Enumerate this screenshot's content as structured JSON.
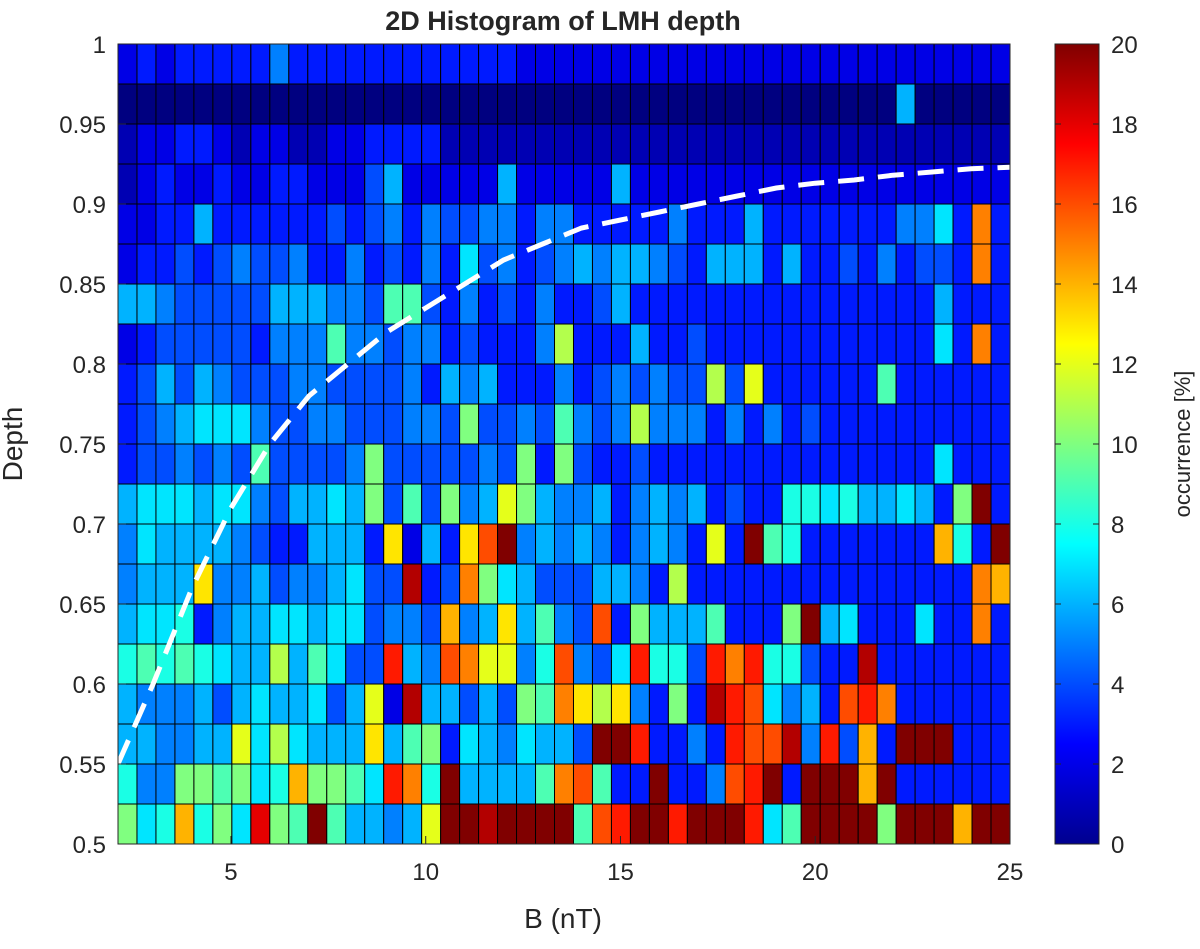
{
  "chart_data": {
    "type": "heatmap",
    "title": "2D Histogram of LMH depth",
    "xlabel": "B (nT)",
    "ylabel": "Depth",
    "colorbar_label": "occurrence [%]",
    "xlim": [
      2.1,
      25
    ],
    "ylim": [
      0.5,
      1
    ],
    "x_ticks": [
      5,
      10,
      15,
      20,
      25
    ],
    "y_ticks": [
      0.5,
      0.55,
      0.6,
      0.65,
      0.7,
      0.75,
      0.8,
      0.85,
      0.9,
      0.95,
      1
    ],
    "colorbar_ticks": [
      0,
      2,
      4,
      6,
      8,
      10,
      12,
      14,
      16,
      18,
      20
    ],
    "clim": [
      0,
      20
    ],
    "colormap": "jet",
    "n_x_bins": 47,
    "n_y_bins": 20,
    "grid": true,
    "legend": "colorbar-right",
    "dashed_curve": {
      "color": "#ffffff",
      "points": [
        [
          2.1,
          0.55
        ],
        [
          3.0,
          0.6
        ],
        [
          4.0,
          0.66
        ],
        [
          5.0,
          0.71
        ],
        [
          6.0,
          0.75
        ],
        [
          7.0,
          0.78
        ],
        [
          8.0,
          0.8
        ],
        [
          9.0,
          0.82
        ],
        [
          10.0,
          0.835
        ],
        [
          11.0,
          0.85
        ],
        [
          12.0,
          0.865
        ],
        [
          13.0,
          0.875
        ],
        [
          14.0,
          0.885
        ],
        [
          15.0,
          0.89
        ],
        [
          16.0,
          0.895
        ],
        [
          17.0,
          0.9
        ],
        [
          18.0,
          0.905
        ],
        [
          19.0,
          0.91
        ],
        [
          20.0,
          0.913
        ],
        [
          21.0,
          0.915
        ],
        [
          22.0,
          0.918
        ],
        [
          23.0,
          0.92
        ],
        [
          24.0,
          0.922
        ],
        [
          25.0,
          0.923
        ]
      ]
    },
    "cells": [
      [
        2,
        3,
        2,
        3,
        3,
        3,
        3,
        3,
        5,
        3,
        3,
        3,
        3,
        3,
        3,
        3,
        3,
        3,
        3,
        3,
        3,
        2,
        2,
        2,
        2,
        2,
        2,
        2,
        2,
        2,
        2,
        2,
        2,
        2,
        2,
        2,
        2,
        2,
        2,
        2,
        2,
        2,
        2,
        2,
        2,
        2,
        2
      ],
      [
        0,
        0,
        0,
        0,
        0,
        0,
        0,
        0,
        0,
        0,
        0,
        0,
        0,
        0,
        0,
        0,
        0,
        0,
        0,
        0,
        0,
        0,
        0,
        0,
        0,
        0,
        0,
        0,
        0,
        0,
        0,
        0,
        0,
        0,
        0,
        0,
        0,
        0,
        0,
        0,
        0,
        6,
        0,
        0,
        0,
        0,
        0
      ],
      [
        1,
        2,
        2,
        3,
        3,
        2,
        1,
        2,
        2,
        1,
        1,
        2,
        2,
        3,
        3,
        3,
        3,
        1,
        1,
        1,
        1,
        1,
        1,
        1,
        1,
        1,
        1,
        1,
        1,
        1,
        1,
        1,
        1,
        1,
        1,
        1,
        1,
        1,
        1,
        1,
        1,
        1,
        1,
        1,
        1,
        1,
        1
      ],
      [
        1,
        2,
        3,
        2,
        2,
        3,
        2,
        2,
        3,
        3,
        2,
        2,
        2,
        4,
        6,
        2,
        2,
        2,
        2,
        2,
        6,
        2,
        2,
        2,
        2,
        2,
        6,
        2,
        2,
        2,
        2,
        2,
        2,
        2,
        2,
        2,
        2,
        2,
        2,
        2,
        2,
        2,
        2,
        2,
        2,
        2,
        2
      ],
      [
        2,
        2,
        3,
        3,
        6,
        3,
        3,
        3,
        3,
        3,
        3,
        4,
        3,
        4,
        5,
        3,
        5,
        4,
        4,
        5,
        5,
        3,
        5,
        5,
        3,
        3,
        3,
        3,
        3,
        5,
        3,
        3,
        3,
        6,
        3,
        3,
        3,
        3,
        3,
        3,
        3,
        5,
        5,
        7,
        3,
        15,
        3
      ],
      [
        2,
        3,
        3,
        4,
        3,
        4,
        5,
        4,
        4,
        5,
        3,
        3,
        5,
        3,
        4,
        3,
        5,
        3,
        7,
        4,
        5,
        3,
        4,
        5,
        6,
        5,
        6,
        6,
        5,
        4,
        3,
        6,
        6,
        6,
        3,
        6,
        3,
        3,
        4,
        3,
        5,
        3,
        4,
        4,
        3,
        15,
        3
      ],
      [
        6,
        6,
        5,
        4,
        4,
        4,
        4,
        4,
        6,
        6,
        6,
        5,
        5,
        4,
        9,
        9,
        4,
        3,
        5,
        3,
        4,
        3,
        5,
        3,
        3,
        4,
        6,
        3,
        3,
        3,
        3,
        3,
        3,
        3,
        3,
        3,
        3,
        3,
        3,
        3,
        3,
        3,
        3,
        6,
        3,
        3,
        3
      ],
      [
        2,
        3,
        4,
        4,
        4,
        4,
        4,
        3,
        5,
        5,
        5,
        9,
        5,
        5,
        4,
        5,
        5,
        3,
        4,
        3,
        3,
        3,
        5,
        11,
        3,
        3,
        3,
        6,
        3,
        3,
        4,
        3,
        3,
        3,
        3,
        3,
        3,
        3,
        3,
        3,
        3,
        3,
        3,
        7,
        3,
        15,
        3
      ],
      [
        3,
        4,
        6,
        4,
        6,
        5,
        4,
        4,
        4,
        5,
        5,
        4,
        4,
        4,
        4,
        5,
        3,
        6,
        5,
        6,
        3,
        3,
        3,
        5,
        3,
        4,
        5,
        4,
        5,
        4,
        4,
        11,
        4,
        12,
        3,
        3,
        3,
        3,
        3,
        3,
        9,
        3,
        3,
        3,
        3,
        3,
        3
      ],
      [
        3,
        4,
        5,
        6,
        7,
        7,
        7,
        5,
        4,
        4,
        5,
        5,
        4,
        4,
        4,
        5,
        5,
        4,
        10,
        4,
        4,
        5,
        4,
        9,
        5,
        4,
        5,
        11,
        5,
        5,
        5,
        3,
        5,
        3,
        5,
        3,
        4,
        3,
        3,
        3,
        3,
        3,
        3,
        3,
        3,
        3,
        3
      ],
      [
        3,
        4,
        4,
        5,
        4,
        5,
        4,
        9,
        4,
        4,
        4,
        4,
        5,
        10,
        4,
        4,
        4,
        4,
        4,
        5,
        4,
        10,
        3,
        10,
        4,
        3,
        3,
        4,
        3,
        3,
        3,
        3,
        3,
        3,
        3,
        3,
        3,
        3,
        3,
        3,
        3,
        3,
        3,
        7,
        3,
        3,
        3
      ],
      [
        6,
        7,
        7,
        7,
        6,
        7,
        7,
        5,
        4,
        6,
        6,
        7,
        6,
        10,
        4,
        9,
        4,
        10,
        5,
        6,
        12,
        10,
        6,
        5,
        5,
        6,
        3,
        5,
        6,
        5,
        6,
        3,
        4,
        3,
        3,
        8,
        8,
        7,
        8,
        6,
        6,
        7,
        6,
        3,
        10,
        20,
        3
      ],
      [
        5,
        7,
        6,
        6,
        6,
        6,
        5,
        4,
        3,
        3,
        6,
        6,
        6,
        3,
        13,
        2,
        6,
        3,
        13,
        16,
        20,
        5,
        6,
        5,
        6,
        5,
        3,
        5,
        6,
        5,
        3,
        12,
        3,
        20,
        9,
        8,
        3,
        3,
        3,
        3,
        3,
        3,
        3,
        14,
        8,
        3,
        20
      ],
      [
        5,
        6,
        6,
        6,
        13,
        5,
        5,
        6,
        4,
        5,
        5,
        6,
        7,
        4,
        4,
        19,
        3,
        4,
        15,
        10,
        7,
        6,
        4,
        4,
        4,
        6,
        6,
        5,
        3,
        11,
        3,
        3,
        3,
        3,
        3,
        3,
        3,
        3,
        3,
        3,
        3,
        3,
        3,
        3,
        3,
        15,
        14
      ],
      [
        6,
        7,
        7,
        8,
        3,
        5,
        6,
        6,
        7,
        7,
        6,
        7,
        7,
        4,
        5,
        5,
        4,
        14,
        5,
        6,
        13,
        6,
        9,
        5,
        4,
        16,
        3,
        10,
        6,
        6,
        6,
        9,
        3,
        3,
        3,
        10,
        20,
        6,
        7,
        3,
        3,
        3,
        7,
        3,
        3,
        15,
        3
      ],
      [
        8,
        9,
        8,
        9,
        8,
        7,
        6,
        6,
        11,
        6,
        9,
        7,
        4,
        4,
        17,
        6,
        5,
        16,
        15,
        12,
        12,
        5,
        8,
        16,
        5,
        4,
        7,
        17,
        8,
        8,
        4,
        17,
        15,
        17,
        8,
        8,
        4,
        3,
        3,
        19,
        3,
        3,
        3,
        3,
        3,
        3,
        3
      ],
      [
        6,
        5,
        5,
        5,
        6,
        4,
        6,
        7,
        6,
        6,
        7,
        4,
        6,
        12,
        2,
        19,
        6,
        6,
        4,
        6,
        4,
        10,
        9,
        15,
        13,
        11,
        13,
        5,
        3,
        10,
        3,
        19,
        17,
        16,
        7,
        5,
        6,
        3,
        16,
        17,
        15,
        3,
        3,
        3,
        3,
        3,
        3
      ],
      [
        6,
        6,
        5,
        5,
        6,
        6,
        12,
        7,
        11,
        7,
        6,
        6,
        6,
        13,
        6,
        9,
        10,
        3,
        7,
        6,
        5,
        7,
        6,
        6,
        4,
        20,
        20,
        17,
        3,
        3,
        5,
        3,
        17,
        16,
        16,
        19,
        5,
        17,
        4,
        14,
        3,
        20,
        20,
        20,
        3,
        3,
        3
      ],
      [
        8,
        5,
        5,
        10,
        10,
        9,
        10,
        7,
        8,
        14,
        10,
        10,
        9,
        7,
        17,
        15,
        8,
        20,
        6,
        6,
        6,
        6,
        9,
        15,
        16,
        9,
        3,
        3,
        20,
        3,
        3,
        5,
        16,
        17,
        20,
        3,
        20,
        20,
        20,
        14,
        20,
        3,
        3,
        3,
        3,
        3,
        3
      ],
      [
        10,
        7,
        8,
        14,
        8,
        10,
        7,
        18,
        10,
        9,
        20,
        9,
        6,
        6,
        5,
        6,
        12,
        20,
        20,
        19,
        20,
        20,
        20,
        20,
        9,
        16,
        17,
        20,
        20,
        17,
        20,
        20,
        20,
        17,
        7,
        9,
        20,
        20,
        20,
        20,
        10,
        20,
        20,
        20,
        14,
        20,
        20
      ]
    ]
  }
}
